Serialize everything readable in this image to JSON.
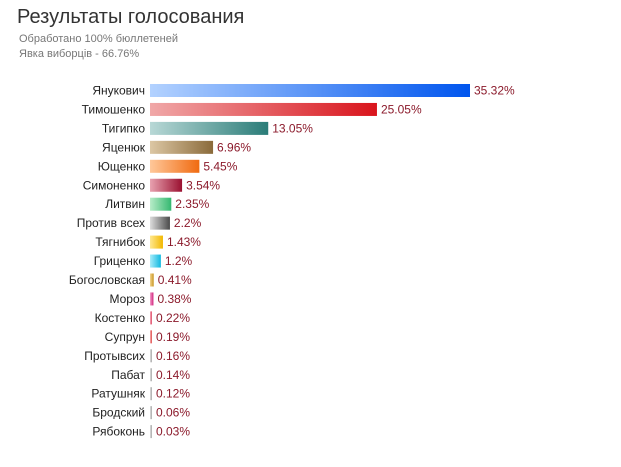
{
  "title": "Результаты голосования",
  "subtitle_lines": [
    "Обработано 100% бюллетеней",
    "Явка виборців - 66.76%"
  ],
  "chart_data": {
    "type": "bar",
    "orientation": "horizontal",
    "categories": [
      "Янукович",
      "Тимошенко",
      "Тигипко",
      "Яценюк",
      "Ющенко",
      "Симоненко",
      "Литвин",
      "Против всех",
      "Тягнибок",
      "Гриценко",
      "Богословская",
      "Мороз",
      "Костенко",
      "Супрун",
      "Протывсих",
      "Пабат",
      "Ратушняк",
      "Бродский",
      "Рябоконь"
    ],
    "values": [
      35.32,
      25.05,
      13.05,
      6.96,
      5.45,
      3.54,
      2.35,
      2.2,
      1.43,
      1.2,
      0.41,
      0.38,
      0.22,
      0.19,
      0.16,
      0.14,
      0.12,
      0.06,
      0.03
    ],
    "value_labels": [
      "35.32%",
      "25.05%",
      "13.05%",
      "6.96%",
      "5.45%",
      "3.54%",
      "2.35%",
      "2.2%",
      "1.43%",
      "1.2%",
      "0.41%",
      "0.38%",
      "0.22%",
      "0.19%",
      "0.16%",
      "0.14%",
      "0.12%",
      "0.06%",
      "0.03%"
    ],
    "unit": "%",
    "xlim": [
      0,
      35.32
    ],
    "grid": false,
    "legend": "none",
    "colors": [
      [
        "#b3d2ff",
        "#0055ee"
      ],
      [
        "#f0a8a8",
        "#d9141c"
      ],
      [
        "#b8d8d6",
        "#2a7c78"
      ],
      [
        "#dcc7a4",
        "#8a6a3a"
      ],
      [
        "#ffc89a",
        "#f06a10"
      ],
      [
        "#e8a2b0",
        "#9a1030"
      ],
      [
        "#b8ecc8",
        "#34b870"
      ],
      [
        "#dddddd",
        "#4a4a4a"
      ],
      [
        "#ffe890",
        "#f2b800"
      ],
      [
        "#a8ecfa",
        "#10b8e0"
      ],
      [
        "#f4d690",
        "#c89420"
      ],
      [
        "#f4a0cc",
        "#d0207a"
      ],
      [
        "#f4a8b8",
        "#e0506a"
      ],
      [
        "#f6b0b0",
        "#e05050"
      ],
      [
        "#dddddd",
        "#aaaaaa"
      ],
      [
        "#dddddd",
        "#aaaaaa"
      ],
      [
        "#dddddd",
        "#aaaaaa"
      ],
      [
        "#dddddd",
        "#aaaaaa"
      ],
      [
        "#dddddd",
        "#aaaaaa"
      ]
    ]
  }
}
